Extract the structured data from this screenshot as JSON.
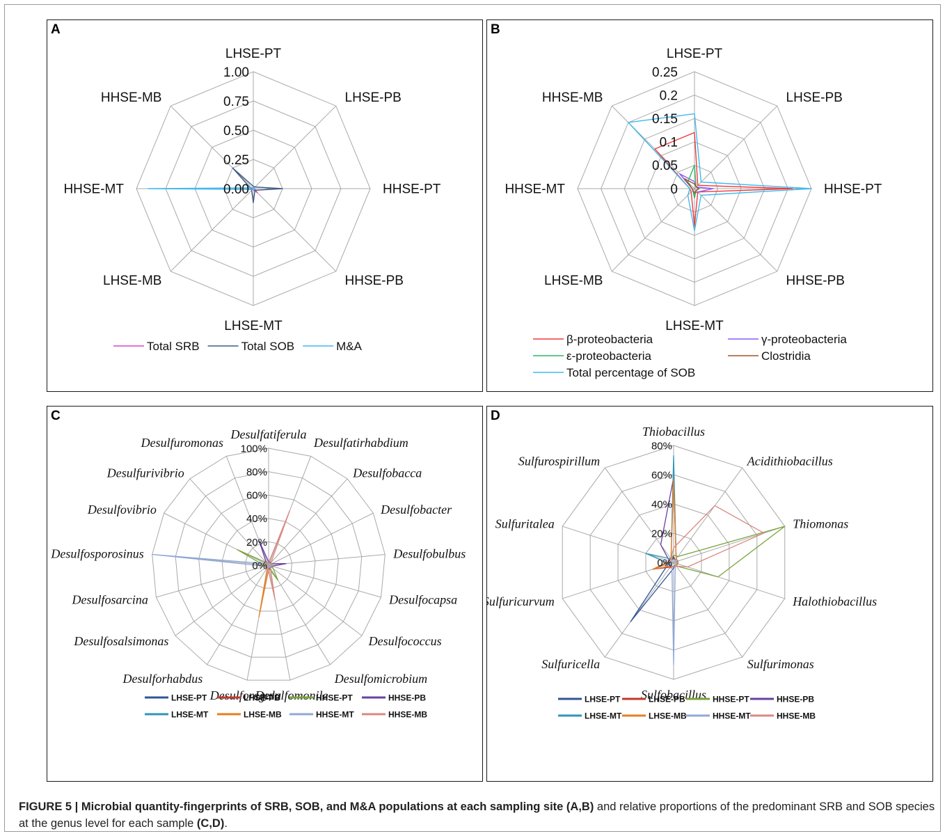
{
  "caption": {
    "lead": "FIGURE 5 | Microbial quantity-fingerprints of SRB, SOB, and M&A populations at each sampling site (A,B)",
    "middle": " and relative proportions of the predominant SRB and SOB species at the genus level for each sample ",
    "end": "(C,D)",
    "tail": "."
  },
  "chart_data": [
    {
      "panel": "A",
      "type": "radar",
      "axes": [
        "LHSE-PT",
        "LHSE-PB",
        "HHSE-PT",
        "HHSE-PB",
        "LHSE-MT",
        "LHSE-MB",
        "HHSE-MT",
        "HHSE-MB"
      ],
      "rlim": [
        0,
        1
      ],
      "ticks": [
        "0.00",
        "0.25",
        "0.50",
        "0.75",
        "1.00"
      ],
      "series": [
        {
          "name": "Total SRB",
          "color": "#d946c9",
          "values": [
            0.01,
            0.01,
            0.01,
            0.05,
            0.01,
            0.01,
            0.02,
            0.01
          ]
        },
        {
          "name": "Total SOB",
          "color": "#3f5a86",
          "values": [
            0.02,
            0.02,
            0.25,
            0.02,
            0.12,
            0.02,
            0.02,
            0.25
          ]
        },
        {
          "name": "M&A",
          "color": "#41b8ef",
          "values": [
            0.01,
            0.01,
            0.01,
            0.01,
            0.01,
            0.01,
            0.9,
            0.01
          ]
        }
      ]
    },
    {
      "panel": "B",
      "type": "radar",
      "axes": [
        "LHSE-PT",
        "LHSE-PB",
        "HHSE-PT",
        "HHSE-PB",
        "LHSE-MT",
        "LHSE-MB",
        "HHSE-MT",
        "HHSE-MB"
      ],
      "rlim": [
        0,
        0.25
      ],
      "ticks": [
        "0",
        "0.05",
        "0.1",
        "0.15",
        "0.2",
        "0.25"
      ],
      "series": [
        {
          "name": "β-proteobacteria",
          "color": "#ee3b3b",
          "values": [
            0.12,
            0.01,
            0.21,
            0.01,
            0.08,
            0.01,
            0.01,
            0.12
          ]
        },
        {
          "name": "γ-proteobacteria",
          "color": "#8b5cf6",
          "values": [
            0.015,
            0.005,
            0.04,
            0.01,
            0.01,
            0.005,
            0.005,
            0.045
          ]
        },
        {
          "name": "ε-proteobacteria",
          "color": "#2cb764",
          "values": [
            0.05,
            0.005,
            0.01,
            0.005,
            0.02,
            0.005,
            0.005,
            0.02
          ]
        },
        {
          "name": "Clostridia",
          "color": "#a0522d",
          "values": [
            0.01,
            0.005,
            0.01,
            0.005,
            0.01,
            0.005,
            0.005,
            0.03
          ]
        },
        {
          "name": "Total percentage of SOB",
          "color": "#41b8ef",
          "values": [
            0.16,
            0.02,
            0.25,
            0.02,
            0.09,
            0.02,
            0.01,
            0.2
          ]
        }
      ],
      "legend_layout": [
        [
          "β-proteobacteria",
          "γ-proteobacteria"
        ],
        [
          "ε-proteobacteria",
          "Clostridia"
        ],
        [
          "Total percentage of SOB"
        ]
      ]
    },
    {
      "panel": "C",
      "type": "radar",
      "axes": [
        "Desulfatiferula",
        "Desulfatirhabdium",
        "Desulfobacca",
        "Desulfobacter",
        "Desulfobulbus",
        "Desulfocapsa",
        "Desulfococcus",
        "Desulfomicrobium",
        "Desulfomonile",
        "Desulforegula",
        "Desulforhabdus",
        "Desulfosalsimonas",
        "Desulfosarcina",
        "Desulfosporosinus",
        "Desulfovibrio",
        "Desulfurivibrio",
        "Desulfuromonas"
      ],
      "rlim": [
        0,
        100
      ],
      "ticks": [
        "0%",
        "20%",
        "40%",
        "60%",
        "80%",
        "100%"
      ],
      "series": [
        {
          "name": "LHSE-PT",
          "color": "#2f5597",
          "values": [
            3,
            2,
            2,
            2,
            2,
            2,
            3,
            2,
            2,
            2,
            3,
            2,
            2,
            3,
            2,
            2,
            2
          ]
        },
        {
          "name": "LHSE-PB",
          "color": "#c0392b",
          "values": [
            2,
            2,
            2,
            2,
            2,
            2,
            2,
            2,
            2,
            2,
            2,
            2,
            2,
            2,
            2,
            2,
            2
          ]
        },
        {
          "name": "HHSE-PT",
          "color": "#7aa33a",
          "values": [
            2,
            2,
            2,
            2,
            3,
            3,
            5,
            15,
            3,
            2,
            2,
            2,
            2,
            5,
            30,
            3,
            2
          ]
        },
        {
          "name": "HHSE-PB",
          "color": "#6b3fa0",
          "values": [
            3,
            3,
            3,
            3,
            15,
            3,
            3,
            3,
            3,
            3,
            3,
            3,
            3,
            3,
            3,
            3,
            22
          ]
        },
        {
          "name": "LHSE-MT",
          "color": "#2e95b8",
          "values": [
            2,
            2,
            2,
            2,
            2,
            2,
            2,
            2,
            2,
            2,
            2,
            2,
            2,
            3,
            2,
            2,
            2
          ]
        },
        {
          "name": "LHSE-MB",
          "color": "#e67e22",
          "values": [
            2,
            2,
            2,
            2,
            2,
            2,
            2,
            2,
            2,
            45,
            2,
            2,
            3,
            2,
            2,
            2,
            2
          ]
        },
        {
          "name": "HHSE-MT",
          "color": "#8fa8d8",
          "values": [
            2,
            2,
            2,
            2,
            2,
            2,
            2,
            2,
            2,
            2,
            2,
            2,
            3,
            100,
            3,
            2,
            2
          ]
        },
        {
          "name": "HHSE-MB",
          "color": "#d98880",
          "values": [
            2,
            50,
            3,
            3,
            3,
            3,
            3,
            3,
            30,
            3,
            3,
            3,
            3,
            3,
            3,
            3,
            3
          ]
        }
      ]
    },
    {
      "panel": "D",
      "type": "radar",
      "axes": [
        "Thiobacillus",
        "Acidithiobacillus",
        "Thiomonas",
        "Halothiobacillus",
        "Sulfurimonas",
        "Sulfobacillus",
        "Sulfuricella",
        "Sulfuricurvum",
        "Sulfuritalea",
        "Sulfurospirillum"
      ],
      "rlim": [
        0,
        80
      ],
      "ticks": [
        "0%",
        "20%",
        "40%",
        "60%",
        "80%"
      ],
      "series": [
        {
          "name": "LHSE-PT",
          "color": "#2f5597",
          "values": [
            4,
            2,
            2,
            2,
            2,
            4,
            50,
            4,
            2,
            2
          ]
        },
        {
          "name": "LHSE-PB",
          "color": "#c0392b",
          "values": [
            3,
            2,
            2,
            2,
            2,
            3,
            4,
            15,
            2,
            2
          ]
        },
        {
          "name": "HHSE-PT",
          "color": "#7aa33a",
          "values": [
            5,
            5,
            80,
            32,
            3,
            3,
            3,
            3,
            3,
            3
          ]
        },
        {
          "name": "HHSE-PB",
          "color": "#6b3fa0",
          "values": [
            58,
            3,
            3,
            3,
            3,
            3,
            3,
            3,
            3,
            15
          ]
        },
        {
          "name": "LHSE-MT",
          "color": "#2e95b8",
          "values": [
            73,
            3,
            3,
            3,
            3,
            3,
            3,
            3,
            20,
            3
          ]
        },
        {
          "name": "LHSE-MB",
          "color": "#e67e22",
          "values": [
            57,
            3,
            3,
            3,
            3,
            3,
            3,
            15,
            3,
            3
          ]
        },
        {
          "name": "HHSE-MT",
          "color": "#8fa8d8",
          "values": [
            2,
            2,
            2,
            2,
            2,
            70,
            2,
            2,
            2,
            2
          ]
        },
        {
          "name": "HHSE-MB",
          "color": "#d98880",
          "values": [
            10,
            48,
            65,
            10,
            3,
            3,
            5,
            3,
            3,
            3
          ]
        }
      ]
    }
  ]
}
